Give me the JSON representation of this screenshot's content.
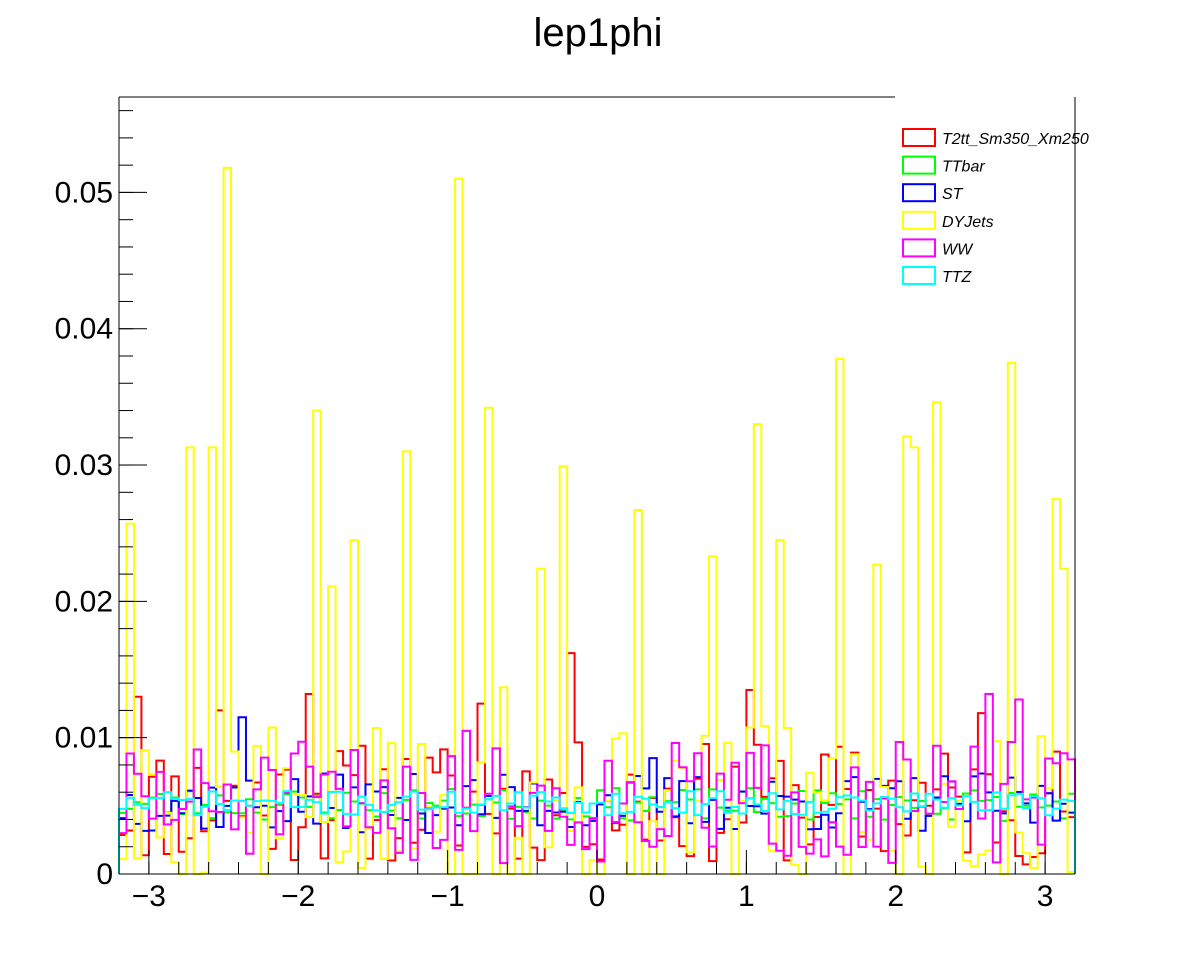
{
  "chart_data": {
    "type": "histogram-step",
    "title": "lep1phi",
    "xlabel": "",
    "ylabel": "",
    "xlim": [
      -3.2,
      3.2
    ],
    "ylim": [
      0,
      0.057
    ],
    "grid": false,
    "legend_position": "top-right",
    "x_ticks": [
      {
        "value": -3,
        "label": "−3"
      },
      {
        "value": -2,
        "label": "−2"
      },
      {
        "value": -1,
        "label": "−1"
      },
      {
        "value": 0,
        "label": "0"
      },
      {
        "value": 1,
        "label": "1"
      },
      {
        "value": 2,
        "label": "2"
      },
      {
        "value": 3,
        "label": "3"
      }
    ],
    "y_ticks": [
      {
        "value": 0,
        "label": "0"
      },
      {
        "value": 0.01,
        "label": "0.01"
      },
      {
        "value": 0.02,
        "label": "0.02"
      },
      {
        "value": 0.03,
        "label": "0.03"
      },
      {
        "value": 0.04,
        "label": "0.04"
      },
      {
        "value": 0.05,
        "label": "0.05"
      }
    ],
    "bins": 128,
    "series": [
      {
        "name": "T2tt_Sm350_Xm250",
        "color": "#ff0000",
        "mean": 0.0052,
        "spread": 0.0045,
        "seed": 11,
        "peaks": [
          [
            -3.1,
            0.013
          ],
          [
            -1.95,
            0.0132
          ],
          [
            -2.55,
            0.012
          ],
          [
            -0.2,
            0.0162
          ],
          [
            1.0,
            0.0135
          ],
          [
            2.55,
            0.0118
          ],
          [
            -0.8,
            0.0125
          ]
        ]
      },
      {
        "name": "TTbar",
        "color": "#00ff00",
        "mean": 0.0051,
        "spread": 0.0012,
        "seed": 23,
        "peaks": []
      },
      {
        "name": "ST",
        "color": "#0000ff",
        "mean": 0.0052,
        "spread": 0.0022,
        "seed": 37,
        "peaks": [
          [
            -2.4,
            0.0115
          ],
          [
            0.35,
            0.0085
          ]
        ]
      },
      {
        "name": "DYJets",
        "color": "#ffff00",
        "mean": 0.0045,
        "spread": 0.0065,
        "seed": 5,
        "peaks": [
          [
            -3.15,
            0.0257
          ],
          [
            -2.5,
            0.0518
          ],
          [
            -2.6,
            0.0313
          ],
          [
            -2.75,
            0.0313
          ],
          [
            -1.9,
            0.034
          ],
          [
            -1.65,
            0.0245
          ],
          [
            -1.3,
            0.031
          ],
          [
            -0.95,
            0.051
          ],
          [
            -0.75,
            0.0342
          ],
          [
            -0.4,
            0.0224
          ],
          [
            -0.25,
            0.0299
          ],
          [
            0.25,
            0.0267
          ],
          [
            0.75,
            0.0233
          ],
          [
            1.05,
            0.033
          ],
          [
            1.2,
            0.0245
          ],
          [
            1.6,
            0.0378
          ],
          [
            2.05,
            0.0321
          ],
          [
            2.25,
            0.0346
          ],
          [
            2.75,
            0.0375
          ],
          [
            3.05,
            0.0275
          ],
          [
            3.1,
            0.0224
          ],
          [
            -1.8,
            0.0211
          ],
          [
            -0.65,
            0.0137
          ],
          [
            1.85,
            0.0227
          ],
          [
            2.15,
            0.0313
          ]
        ]
      },
      {
        "name": "WW",
        "color": "#ff00ff",
        "mean": 0.0052,
        "spread": 0.0045,
        "seed": 51,
        "peaks": [
          [
            2.65,
            0.0132
          ],
          [
            2.8,
            0.0128
          ],
          [
            -0.9,
            0.0105
          ]
        ]
      },
      {
        "name": "TTZ",
        "color": "#00ffff",
        "mean": 0.0052,
        "spread": 0.0009,
        "seed": 71,
        "peaks": []
      }
    ]
  }
}
